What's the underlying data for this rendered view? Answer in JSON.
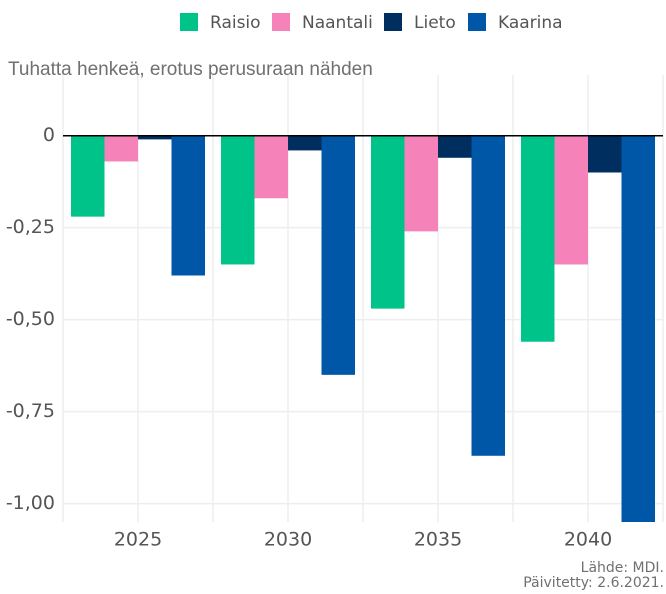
{
  "chart_data": {
    "type": "bar",
    "title": "Tuhatta henkeä, erotus perusuraan nähden",
    "categories": [
      "2025",
      "2030",
      "2035",
      "2040"
    ],
    "series": [
      {
        "name": "Raisio",
        "color": "#00c389",
        "values": [
          -0.22,
          -0.35,
          -0.47,
          -0.56
        ]
      },
      {
        "name": "Naantali",
        "color": "#f583b9",
        "values": [
          -0.07,
          -0.17,
          -0.26,
          -0.35
        ]
      },
      {
        "name": "Lieto",
        "color": "#002f5f",
        "values": [
          -0.01,
          -0.04,
          -0.06,
          -0.1
        ]
      },
      {
        "name": "Kaarina",
        "color": "#0057a8",
        "values": [
          -0.38,
          -0.65,
          -0.87,
          -1.05
        ]
      }
    ],
    "ylim": [
      -1.05,
      0.165
    ],
    "yticks": [
      0,
      {
        "value": -0.25,
        "label": "-0,25"
      },
      {
        "value": -0.5,
        "label": "-0,50"
      },
      {
        "value": -0.75,
        "label": "-0,75"
      },
      {
        "value": -1,
        "label": "-1,00"
      }
    ],
    "grid": true,
    "legend": "top",
    "notes": [
      "Lähde: MDI.",
      "Päivitetty: 2.6.2021."
    ]
  }
}
